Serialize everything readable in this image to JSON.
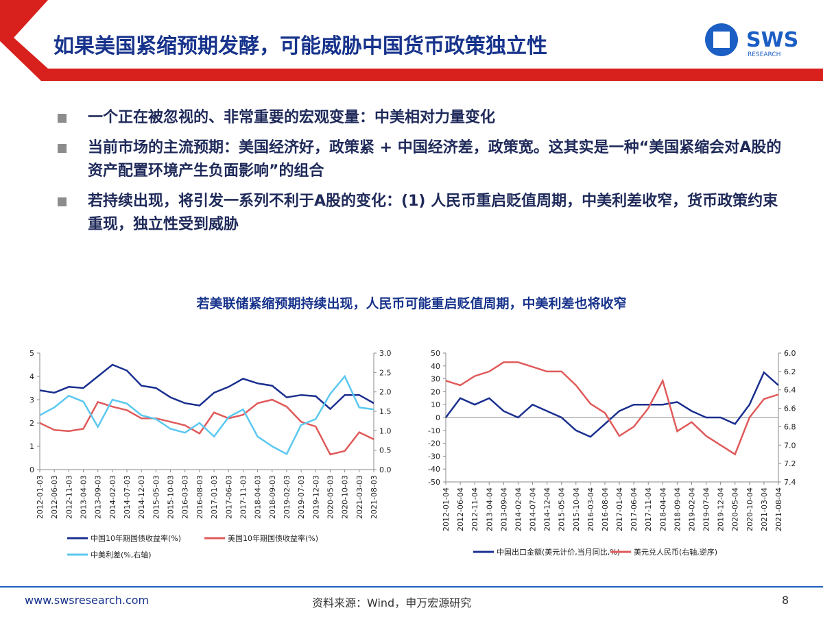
{
  "header": {
    "title": "如果美国紧缩预期发酵，可能威胁中国货币政策独立性"
  },
  "logo": {
    "name": "SWS",
    "subtitle": "RESEARCH"
  },
  "bullets": [
    "一个正在被忽视的、非常重要的宏观变量：中美相对力量变化",
    "当前市场的主流预期：美国经济好，政策紧 + 中国经济差，政策宽。这其实是一种“美国紧缩会对A股的资产配置环境产生负面影响”的组合",
    "若持续出现，将引发一系列不利于A股的变化：(1) 人民币重启贬值周期，中美利差收窄，货币政策约束重现，独立性受到威胁"
  ],
  "chart_heading": "若美联储紧缩预期持续出现，人民币可能重启贬值周期，中美利差也将收窄",
  "chart_data": [
    {
      "type": "line",
      "categories": [
        "2012-01-03",
        "2012-06-03",
        "2012-11-03",
        "2013-04-03",
        "2013-09-03",
        "2014-02-03",
        "2014-07-03",
        "2014-12-03",
        "2015-05-03",
        "2015-10-03",
        "2016-03-03",
        "2016-08-03",
        "2017-01-03",
        "2017-06-03",
        "2017-11-03",
        "2018-04-03",
        "2018-09-03",
        "2019-02-03",
        "2019-07-03",
        "2019-12-03",
        "2020-05-03",
        "2020-10-03",
        "2021-03-03",
        "2021-08-03"
      ],
      "series": [
        {
          "name": "中国10年期国债收益率(%)",
          "color": "#1a2f8f",
          "values": [
            3.4,
            3.3,
            3.55,
            3.5,
            4.0,
            4.5,
            4.25,
            3.6,
            3.5,
            3.1,
            2.85,
            2.75,
            3.3,
            3.55,
            3.9,
            3.7,
            3.6,
            3.1,
            3.2,
            3.15,
            2.6,
            3.2,
            3.2,
            2.85
          ]
        },
        {
          "name": "美国10年期国债收益率(%)",
          "color": "#e05a5a",
          "values": [
            2.0,
            1.7,
            1.65,
            1.75,
            2.9,
            2.7,
            2.55,
            2.2,
            2.2,
            2.05,
            1.9,
            1.55,
            2.45,
            2.2,
            2.35,
            2.85,
            3.0,
            2.7,
            2.05,
            1.85,
            0.65,
            0.8,
            1.6,
            1.3
          ]
        },
        {
          "name": "中美利差(%,右轴)",
          "color": "#5bc8f0",
          "axis": "y2",
          "values": [
            1.4,
            1.6,
            1.9,
            1.75,
            1.1,
            1.8,
            1.7,
            1.4,
            1.3,
            1.05,
            0.95,
            1.2,
            0.85,
            1.35,
            1.55,
            0.85,
            0.6,
            0.4,
            1.15,
            1.3,
            1.95,
            2.4,
            1.6,
            1.55
          ]
        }
      ],
      "ylim": [
        0,
        5
      ],
      "yticks": [
        0,
        1,
        2,
        3,
        4,
        5
      ],
      "y2lim": [
        0,
        3
      ],
      "y2ticks": [
        {
          "value": 0,
          "label": "0.0"
        },
        0.5,
        {
          "value": 1,
          "label": "1.0"
        },
        1.5,
        {
          "value": 2,
          "label": "2.0"
        },
        2.5,
        {
          "value": 3,
          "label": "3.0"
        }
      ]
    },
    {
      "type": "line",
      "categories": [
        "2012-01-04",
        "2012-06-04",
        "2012-11-04",
        "2013-04-04",
        "2013-09-04",
        "2014-02-04",
        "2014-07-04",
        "2014-12-04",
        "2015-05-04",
        "2015-10-04",
        "2016-03-04",
        "2016-08-04",
        "2017-01-04",
        "2017-06-04",
        "2017-11-04",
        "2018-04-04",
        "2018-09-04",
        "2019-02-04",
        "2019-07-04",
        "2019-12-04",
        "2020-05-04",
        "2020-10-04",
        "2021-03-04",
        "2021-08-04"
      ],
      "series": [
        {
          "name": "中国出口金额(美元计价,当月同比,%)",
          "color": "#1a2f8f",
          "values": [
            0,
            15,
            10,
            15,
            5,
            0,
            10,
            5,
            0,
            -10,
            -15,
            -5,
            5,
            10,
            10,
            10,
            12,
            5,
            0,
            0,
            -5,
            10,
            35,
            25
          ]
        },
        {
          "name": "美元兑人民币(右轴,逆序)",
          "color": "#e05a5a",
          "axis": "y2",
          "values": [
            6.3,
            6.35,
            6.25,
            6.2,
            6.1,
            6.1,
            6.15,
            6.2,
            6.2,
            6.35,
            6.55,
            6.65,
            6.9,
            6.8,
            6.6,
            6.3,
            6.85,
            6.75,
            6.9,
            7.0,
            7.1,
            6.7,
            6.5,
            6.45
          ]
        }
      ],
      "ylim": [
        -50,
        50
      ],
      "yticks": [
        -50,
        -40,
        -30,
        -20,
        -10,
        0,
        10,
        20,
        30,
        40,
        50
      ],
      "y2lim": [
        6,
        7.4
      ],
      "y2ticks": [
        {
          "value": 6,
          "label": "6.0"
        },
        6.2,
        6.4,
        6.6,
        6.8,
        {
          "value": 7,
          "label": "7.0"
        },
        7.2,
        7.4
      ],
      "y2_inverted": true,
      "zero_line": true
    }
  ],
  "footer": {
    "website": "www.swsresearch.com",
    "source": "资料来源：Wind，申万宏源研究",
    "page_number": 8
  }
}
